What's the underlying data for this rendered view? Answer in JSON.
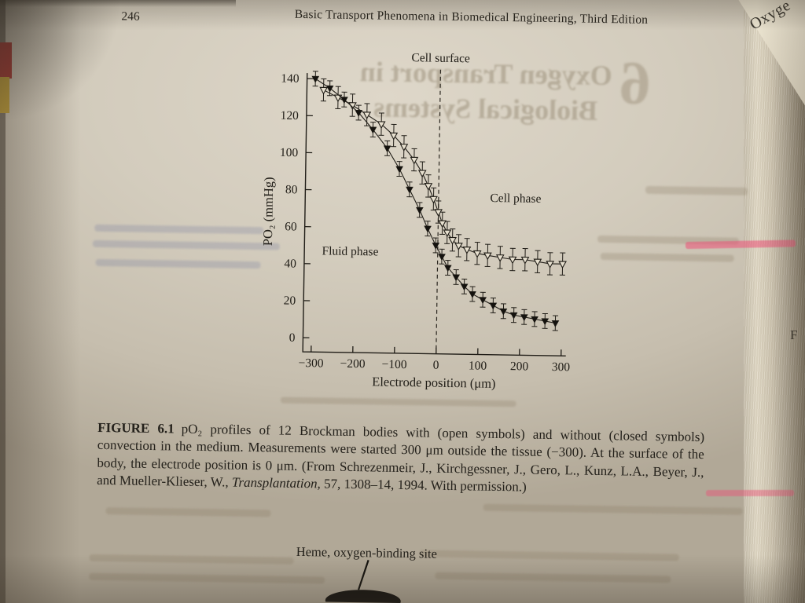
{
  "page": {
    "number": "246",
    "header_title": "Basic Transport Phenomena in Biomedical Engineering, Third Edition",
    "adjacent_text": "Oxyge",
    "adjacent_letter": "F"
  },
  "bleed": {
    "line1": "Oxygen Transport in",
    "line2": "Biological Systems",
    "numeral": "6"
  },
  "annotations": {
    "cell_surface": "Cell surface",
    "cell_phase": "Cell phase",
    "fluid_phase": "Fluid phase",
    "heme_label": "Heme, oxygen-binding site"
  },
  "figure": {
    "caption_label": "FIGURE 6.1",
    "caption_part1": "pO₂ profiles of 12 Brockman bodies with (open symbols) and without (closed symbols) convection in the medium. Measurements were started 300 μm outside the tissue (−300). At the surface of the body, the electrode position is 0 μm. (From Schrezenmeir, J., Kirchgessner, J., Gero, L., Kunz, L.A., Beyer, J., and Mueller-Klieser, W., ",
    "caption_italic": "Transplantation",
    "caption_part2": ", 57, 1308–14, 1994. With permission.)"
  },
  "chart_data": {
    "type": "scatter",
    "title": "",
    "xlabel": "Electrode position (μm)",
    "ylabel": "PO₂ (mmHg)",
    "xlim": [
      -320,
      320
    ],
    "ylim": [
      0,
      150
    ],
    "x_ticks": [
      -300,
      -200,
      -100,
      0,
      100,
      200,
      300
    ],
    "y_ticks": [
      0,
      20,
      40,
      60,
      80,
      100,
      120,
      140
    ],
    "cell_surface_x": 0,
    "legend_note": "open symbols = with convection, closed symbols = without convection",
    "series": [
      {
        "name": "with convection (open symbols)",
        "marker": "open-triangle-down",
        "yerr": 6,
        "x": [
          -280,
          -245,
          -210,
          -175,
          -140,
          -110,
          -85,
          -60,
          -40,
          -25,
          -12,
          0,
          10,
          22,
          35,
          50,
          70,
          95,
          120,
          150,
          180,
          210,
          240,
          270,
          300
        ],
        "y": [
          134,
          130,
          126,
          121,
          116,
          110,
          104,
          97,
          90,
          83,
          76,
          69,
          63,
          58,
          54,
          51,
          49,
          47,
          46,
          45,
          44,
          44,
          43,
          42,
          42
        ]
      },
      {
        "name": "without convection (closed symbols)",
        "marker": "filled-triangle-down",
        "yerr": 4,
        "x": [
          -300,
          -265,
          -230,
          -195,
          -160,
          -125,
          -95,
          -70,
          -45,
          -25,
          -5,
          10,
          25,
          45,
          65,
          85,
          110,
          135,
          160,
          185,
          210,
          235,
          260,
          285
        ],
        "y": [
          140,
          135,
          129,
          122,
          113,
          103,
          92,
          81,
          70,
          60,
          51,
          45,
          39,
          34,
          29,
          25,
          22,
          19,
          16,
          14,
          13,
          12,
          11,
          10
        ]
      }
    ]
  }
}
